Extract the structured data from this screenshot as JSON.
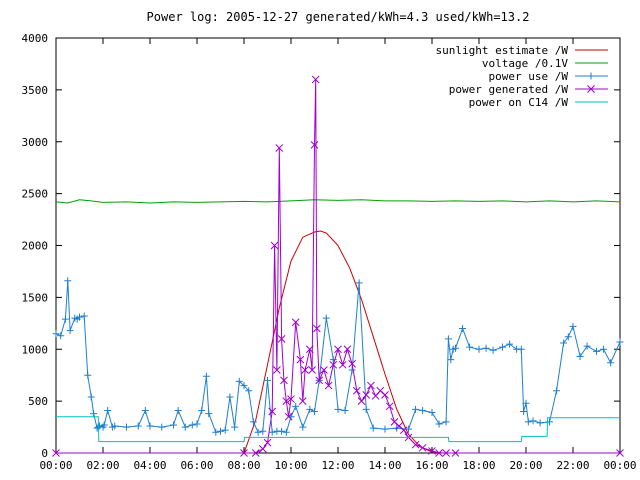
{
  "chart_data": {
    "type": "line",
    "title": "Power log: 2005-12-27 generated/kWh=4.3 used/kWh=13.2",
    "xlabel": "",
    "ylabel": "",
    "xlim": [
      0,
      24
    ],
    "ylim": [
      0,
      4000
    ],
    "grid": false,
    "legend_position": "top-right",
    "x_tick_labels": [
      "00:00",
      "02:00",
      "04:00",
      "06:00",
      "08:00",
      "10:00",
      "12:00",
      "14:00",
      "16:00",
      "18:00",
      "20:00",
      "22:00",
      "00:00"
    ],
    "y_ticks": [
      0,
      500,
      1000,
      1500,
      2000,
      2500,
      3000,
      3500,
      4000
    ],
    "series": [
      {
        "name": "sunlight estimate /W",
        "color": "#cc0000",
        "marker": "none",
        "x": [
          0,
          8.0,
          8.5,
          9.0,
          9.5,
          10.0,
          10.5,
          11.0,
          11.25,
          11.5,
          12.0,
          12.5,
          13.0,
          13.5,
          14.0,
          14.5,
          15.0,
          15.5,
          16.0,
          16.5,
          24
        ],
        "y": [
          0,
          0,
          320,
          850,
          1400,
          1850,
          2080,
          2130,
          2140,
          2120,
          2000,
          1780,
          1480,
          1120,
          760,
          420,
          180,
          60,
          10,
          0,
          0
        ]
      },
      {
        "name": "voltage /0.1V",
        "color": "#00a000",
        "marker": "none",
        "x": [
          0,
          0.5,
          1.0,
          1.5,
          2.0,
          3.0,
          4.0,
          5.0,
          6.0,
          7.0,
          8.0,
          9.0,
          10.0,
          11.0,
          12.0,
          13.0,
          14.0,
          15.0,
          16.0,
          17.0,
          18.0,
          19.0,
          20.0,
          21.0,
          22.0,
          23.0,
          24.0
        ],
        "y": [
          2420,
          2410,
          2440,
          2430,
          2415,
          2420,
          2410,
          2420,
          2415,
          2420,
          2425,
          2420,
          2430,
          2440,
          2435,
          2440,
          2430,
          2430,
          2425,
          2430,
          2425,
          2430,
          2420,
          2430,
          2420,
          2430,
          2420
        ]
      },
      {
        "name": "power use /W",
        "color": "#1f7fd0",
        "marker": "plus",
        "x": [
          0,
          0.2,
          0.4,
          0.5,
          0.6,
          0.8,
          0.9,
          1.0,
          1.2,
          1.35,
          1.5,
          1.6,
          1.75,
          1.8,
          1.85,
          2.0,
          2.05,
          2.2,
          2.4,
          2.5,
          3.0,
          3.5,
          3.8,
          4.0,
          4.5,
          5.0,
          5.2,
          5.5,
          5.8,
          6.0,
          6.2,
          6.4,
          6.5,
          6.8,
          7.0,
          7.2,
          7.4,
          7.6,
          7.8,
          8.0,
          8.2,
          8.4,
          8.6,
          8.8,
          9.0,
          9.2,
          9.4,
          9.6,
          9.8,
          10.0,
          10.2,
          10.5,
          10.8,
          11.0,
          11.2,
          11.5,
          11.8,
          12.0,
          12.3,
          12.6,
          12.9,
          13.2,
          13.5,
          14.0,
          14.5,
          15.0,
          15.3,
          15.6,
          16.0,
          16.3,
          16.6,
          16.7,
          16.8,
          16.9,
          17.0,
          17.3,
          17.6,
          18.0,
          18.3,
          18.6,
          19.0,
          19.3,
          19.6,
          19.8,
          19.9,
          20.0,
          20.1,
          20.3,
          20.6,
          21.0,
          21.3,
          21.6,
          21.8,
          22.0,
          22.3,
          22.6,
          23.0,
          23.3,
          23.6,
          24.0
        ],
        "y": [
          1150,
          1130,
          1290,
          1660,
          1180,
          1300,
          1290,
          1310,
          1320,
          750,
          540,
          380,
          240,
          250,
          260,
          250,
          270,
          410,
          250,
          260,
          250,
          260,
          410,
          260,
          250,
          270,
          410,
          250,
          270,
          280,
          410,
          740,
          380,
          200,
          210,
          220,
          540,
          250,
          690,
          650,
          600,
          300,
          200,
          210,
          700,
          200,
          210,
          210,
          200,
          350,
          450,
          250,
          420,
          400,
          700,
          1300,
          900,
          420,
          410,
          800,
          1640,
          420,
          240,
          230,
          240,
          230,
          420,
          410,
          390,
          280,
          300,
          1100,
          900,
          1000,
          1010,
          1200,
          1020,
          1000,
          1010,
          990,
          1020,
          1050,
          1000,
          1000,
          400,
          480,
          300,
          310,
          290,
          300,
          600,
          1060,
          1120,
          1220,
          930,
          1030,
          980,
          1000,
          870,
          1070
        ]
      },
      {
        "name": "power generated /W",
        "color": "#a000d0",
        "marker": "cross",
        "x": [
          0,
          8.0,
          8.5,
          8.8,
          9.0,
          9.2,
          9.3,
          9.4,
          9.5,
          9.6,
          9.7,
          9.8,
          9.9,
          10.0,
          10.2,
          10.4,
          10.5,
          10.6,
          10.8,
          10.9,
          11.0,
          11.05,
          11.1,
          11.2,
          11.4,
          11.6,
          11.8,
          12.0,
          12.2,
          12.4,
          12.6,
          12.8,
          13.0,
          13.2,
          13.4,
          13.6,
          13.8,
          14.0,
          14.2,
          14.4,
          14.6,
          14.8,
          15.0,
          15.3,
          15.6,
          16.0,
          16.3,
          16.6,
          17.0,
          24.0
        ],
        "y": [
          0,
          0,
          0,
          40,
          100,
          400,
          2000,
          800,
          2940,
          1100,
          700,
          500,
          350,
          520,
          1260,
          900,
          500,
          800,
          1000,
          800,
          2970,
          3600,
          1200,
          700,
          800,
          650,
          850,
          1000,
          850,
          1000,
          860,
          600,
          500,
          560,
          650,
          550,
          600,
          560,
          450,
          300,
          260,
          220,
          150,
          80,
          50,
          20,
          0,
          0,
          0,
          0
        ]
      },
      {
        "name": "power on C14 /W",
        "color": "#00c0c0",
        "marker": "none",
        "x": [
          0,
          1.8,
          1.82,
          8.0,
          8.02,
          16.7,
          16.72,
          19.8,
          19.82,
          20.9,
          20.92,
          24.0
        ],
        "y": [
          350,
          350,
          110,
          110,
          150,
          150,
          110,
          110,
          160,
          160,
          340,
          340
        ]
      }
    ]
  }
}
